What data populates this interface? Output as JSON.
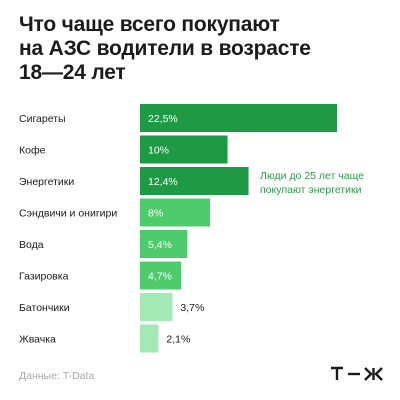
{
  "title_lines": [
    "Что чаще всего покупают",
    "на АЗС водители в возрасте",
    "18—24 лет"
  ],
  "annotation_lines": [
    "Люди до 25 лет чаще",
    "покупают энергетики"
  ],
  "source": "Данные: T-Data",
  "colors": {
    "dark_green": "#1e9a44",
    "medium_green": "#4ecb6c",
    "light_green": "#a2eab4",
    "annotation": "#2a9d4a"
  },
  "logo_name": "t-zh-logo",
  "chart_data": {
    "type": "bar",
    "orientation": "horizontal",
    "categories": [
      "Сигареты",
      "Кофе",
      "Энергетики",
      "Сэндвичи и онигири",
      "Вода",
      "Газировка",
      "Батончики",
      "Жвачка"
    ],
    "values": [
      22.5,
      10,
      12.4,
      8,
      5.4,
      4.7,
      3.7,
      2.1
    ],
    "value_labels": [
      "22,5%",
      "10%",
      "12,4%",
      "8%",
      "5,4%",
      "4,7%",
      "3,7%",
      "2,1%"
    ],
    "bar_colors": [
      "#1e9a44",
      "#1e9a44",
      "#1e9a44",
      "#4ecb6c",
      "#4ecb6c",
      "#4ecb6c",
      "#a2eab4",
      "#a2eab4"
    ],
    "label_inside": [
      true,
      true,
      true,
      true,
      true,
      true,
      false,
      false
    ],
    "label_color_inside": "#ffffff",
    "label_color_outside": "#1b1b1b",
    "unit": "%",
    "title": "",
    "xlabel": "",
    "ylabel": "",
    "grid": false,
    "legend": false
  }
}
